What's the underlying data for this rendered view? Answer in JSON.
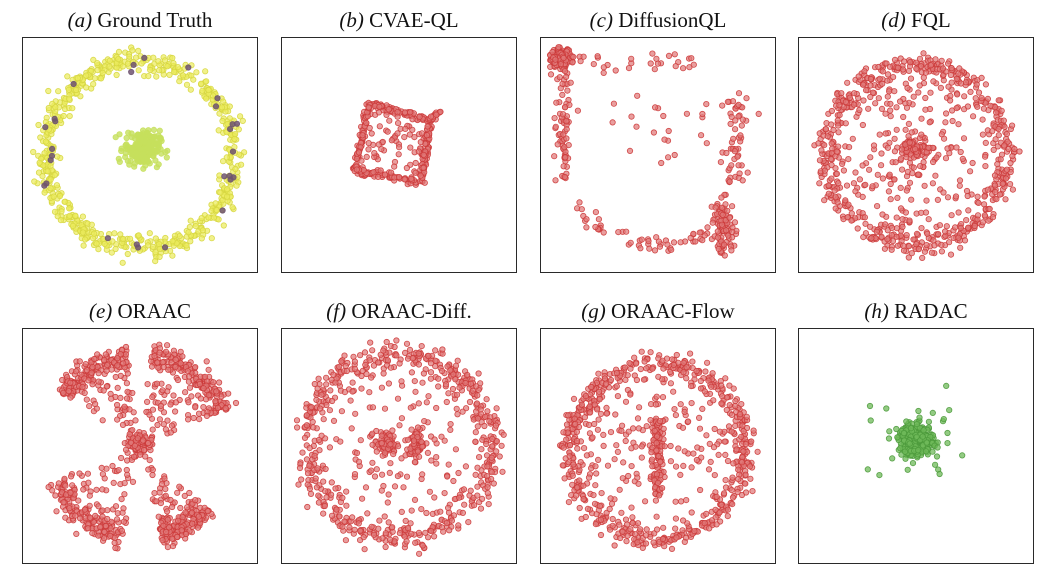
{
  "figure": {
    "panels": [
      {
        "id": "a",
        "tag": "(a)",
        "title": "Ground Truth"
      },
      {
        "id": "b",
        "tag": "(b)",
        "title": "CVAE-QL"
      },
      {
        "id": "c",
        "tag": "(c)",
        "title": "DiffusionQL"
      },
      {
        "id": "d",
        "tag": "(d)",
        "title": "FQL"
      },
      {
        "id": "e",
        "tag": "(e)",
        "title": "ORAAC"
      },
      {
        "id": "f",
        "tag": "(f)",
        "title": "ORAAC-Diff."
      },
      {
        "id": "g",
        "tag": "(g)",
        "title": "ORAAC-Flow"
      },
      {
        "id": "h",
        "tag": "(h)",
        "title": "RADAC"
      }
    ]
  },
  "colors": {
    "red_fill": "#e07878",
    "red_edge": "#cc3a3a",
    "yellow_fill": "#ecec5e",
    "yellow_edge": "#d6d640",
    "dark_purple": "#6e5470",
    "light_green": "#c6e05c",
    "green_fill": "#6fb95a",
    "green_edge": "#4d9a3c"
  },
  "chart_data": [
    {
      "type": "scatter",
      "panel": "a",
      "title": "(a) Ground Truth",
      "xlim": [
        -1,
        1
      ],
      "ylim": [
        -1,
        1
      ],
      "grid": false,
      "xlabel": "",
      "ylabel": "",
      "series": [
        {
          "kind": "ring",
          "cx": 0,
          "cy": 0,
          "r": 0.85,
          "spread": 0.05,
          "n": 650,
          "color": "yellow"
        },
        {
          "kind": "ring",
          "cx": 0,
          "cy": 0,
          "r": 0.85,
          "spread": 0.04,
          "n": 28,
          "color": "dark_purple"
        },
        {
          "kind": "blob",
          "cx": 0.02,
          "cy": 0.06,
          "sx": 0.08,
          "sy": 0.08,
          "n": 220,
          "color": "light_green"
        }
      ]
    },
    {
      "type": "scatter",
      "panel": "b",
      "title": "(b) CVAE-QL",
      "xlim": [
        -1,
        1
      ],
      "ylim": [
        -1,
        1
      ],
      "grid": false,
      "xlabel": "",
      "ylabel": "",
      "series": [
        {
          "kind": "polyline",
          "points": [
            [
              -0.27,
              0.47
            ],
            [
              0.28,
              0.32
            ],
            [
              0.2,
              -0.25
            ],
            [
              -0.4,
              -0.14
            ],
            [
              -0.27,
              0.47
            ]
          ],
          "jitter": 0.015,
          "n": 300,
          "color": "red"
        },
        {
          "kind": "polyline",
          "points": [
            [
              0.28,
              0.32
            ],
            [
              0.38,
              0.4
            ]
          ],
          "jitter": 0.01,
          "n": 16,
          "color": "red"
        },
        {
          "kind": "uniform_poly",
          "points": [
            [
              -0.27,
              0.47
            ],
            [
              0.28,
              0.32
            ],
            [
              0.2,
              -0.25
            ],
            [
              -0.4,
              -0.14
            ]
          ],
          "n": 75,
          "color": "red"
        }
      ]
    },
    {
      "type": "scatter",
      "panel": "c",
      "title": "(c) DiffusionQL",
      "xlim": [
        -1,
        1
      ],
      "ylim": [
        -1,
        1
      ],
      "grid": false,
      "xlabel": "",
      "ylabel": "",
      "series": [
        {
          "kind": "blob",
          "cx": -0.89,
          "cy": 0.88,
          "sx": 0.05,
          "sy": 0.04,
          "n": 130,
          "color": "red"
        },
        {
          "kind": "vband",
          "x": -0.86,
          "y0": -0.25,
          "y1": 0.95,
          "spread": 0.04,
          "n": 80,
          "color": "red"
        },
        {
          "kind": "hband",
          "y": 0.86,
          "x0": -0.8,
          "x1": 0.35,
          "spread": 0.05,
          "n": 30,
          "color": "red"
        },
        {
          "kind": "vband",
          "x": 0.7,
          "y0": -0.25,
          "y1": 0.6,
          "spread": 0.06,
          "n": 55,
          "color": "red"
        },
        {
          "kind": "arc",
          "cx": 0.0,
          "cy": 0.0,
          "r": 0.83,
          "a0": -2.6,
          "a1": -0.95,
          "spread": 0.04,
          "n": 55,
          "color": "red"
        },
        {
          "kind": "blob",
          "cx": 0.6,
          "cy": -0.65,
          "sx": 0.05,
          "sy": 0.12,
          "n": 100,
          "color": "red"
        },
        {
          "kind": "uniform_box",
          "x0": -0.45,
          "x1": 0.45,
          "y0": -0.1,
          "y1": 0.55,
          "n": 22,
          "color": "red"
        }
      ]
    },
    {
      "type": "scatter",
      "panel": "d",
      "title": "(d) FQL",
      "xlim": [
        -1,
        1
      ],
      "ylim": [
        -1,
        1
      ],
      "grid": false,
      "xlabel": "",
      "ylabel": "",
      "series": [
        {
          "kind": "ring",
          "cx": 0,
          "cy": 0,
          "r": 0.82,
          "spread": 0.05,
          "n": 520,
          "color": "red"
        },
        {
          "kind": "disk",
          "cx": 0,
          "cy": 0,
          "r": 0.75,
          "n": 240,
          "color": "red"
        },
        {
          "kind": "blob",
          "cx": 0.0,
          "cy": 0.05,
          "sx": 0.06,
          "sy": 0.06,
          "n": 90,
          "color": "red"
        }
      ]
    },
    {
      "type": "scatter",
      "panel": "e",
      "title": "(e) ORAAC",
      "xlim": [
        -1,
        1
      ],
      "ylim": [
        -1,
        1
      ],
      "grid": false,
      "xlabel": "",
      "ylabel": "",
      "series": [
        {
          "kind": "arc",
          "cx": 0,
          "cy": 0,
          "r": 0.82,
          "a0": 0.4,
          "a1": 1.45,
          "spread": 0.05,
          "n": 170,
          "color": "red"
        },
        {
          "kind": "arc",
          "cx": 0,
          "cy": 0,
          "r": 0.82,
          "a0": 1.7,
          "a1": 2.55,
          "spread": 0.05,
          "n": 150,
          "color": "red"
        },
        {
          "kind": "arc",
          "cx": 0,
          "cy": 0,
          "r": 0.82,
          "a0": -2.75,
          "a1": -1.75,
          "spread": 0.06,
          "n": 150,
          "color": "red"
        },
        {
          "kind": "arc",
          "cx": 0,
          "cy": 0,
          "r": 0.82,
          "a0": -1.35,
          "a1": -0.75,
          "spread": 0.06,
          "n": 150,
          "color": "red"
        },
        {
          "kind": "wedge",
          "a0": 0.4,
          "a1": 1.45,
          "rmax": 0.78,
          "n": 70,
          "color": "red"
        },
        {
          "kind": "wedge",
          "a0": 1.7,
          "a1": 2.55,
          "rmax": 0.78,
          "n": 60,
          "color": "red"
        },
        {
          "kind": "wedge",
          "a0": -2.75,
          "a1": -1.75,
          "rmax": 0.78,
          "n": 60,
          "color": "red"
        },
        {
          "kind": "wedge",
          "a0": -1.35,
          "a1": -0.75,
          "rmax": 0.78,
          "n": 50,
          "color": "red"
        },
        {
          "kind": "blob",
          "cx": 0.0,
          "cy": 0.03,
          "sx": 0.06,
          "sy": 0.05,
          "n": 80,
          "color": "red"
        }
      ]
    },
    {
      "type": "scatter",
      "panel": "f",
      "title": "(f) ORAAC-Diff.",
      "xlim": [
        -1,
        1
      ],
      "ylim": [
        -1,
        1
      ],
      "grid": false,
      "xlabel": "",
      "ylabel": "",
      "series": [
        {
          "kind": "ring",
          "cx": 0,
          "cy": 0.0,
          "r": 0.84,
          "spread": 0.06,
          "n": 520,
          "color": "red"
        },
        {
          "kind": "disk",
          "cx": 0,
          "cy": 0,
          "r": 0.72,
          "n": 150,
          "color": "red"
        },
        {
          "kind": "blob",
          "cx": -0.12,
          "cy": 0.02,
          "sx": 0.05,
          "sy": 0.05,
          "n": 70,
          "color": "red"
        },
        {
          "kind": "blob",
          "cx": 0.16,
          "cy": 0.02,
          "sx": 0.03,
          "sy": 0.07,
          "n": 60,
          "color": "red"
        }
      ]
    },
    {
      "type": "scatter",
      "panel": "g",
      "title": "(g) ORAAC-Flow",
      "xlim": [
        -1,
        1
      ],
      "ylim": [
        -1,
        1
      ],
      "grid": false,
      "xlabel": "",
      "ylabel": "",
      "series": [
        {
          "kind": "ring",
          "cx": 0,
          "cy": -0.05,
          "r": 0.8,
          "spread": 0.05,
          "n": 560,
          "color": "red"
        },
        {
          "kind": "disk",
          "cx": 0,
          "cy": -0.05,
          "r": 0.72,
          "n": 180,
          "color": "red"
        },
        {
          "kind": "vband",
          "x": 0.0,
          "y0": -0.45,
          "y1": 0.25,
          "spread": 0.03,
          "n": 110,
          "color": "red"
        }
      ]
    },
    {
      "type": "scatter",
      "panel": "h",
      "title": "(h) RADAC",
      "xlim": [
        -1,
        1
      ],
      "ylim": [
        -1,
        1
      ],
      "grid": false,
      "xlabel": "",
      "ylabel": "",
      "series": [
        {
          "kind": "blob",
          "cx": 0.0,
          "cy": 0.05,
          "sx": 0.08,
          "sy": 0.07,
          "n": 300,
          "color": "green"
        },
        {
          "kind": "blob",
          "cx": 0.05,
          "cy": 0.0,
          "sx": 0.25,
          "sy": 0.22,
          "n": 25,
          "color": "green"
        }
      ]
    }
  ]
}
